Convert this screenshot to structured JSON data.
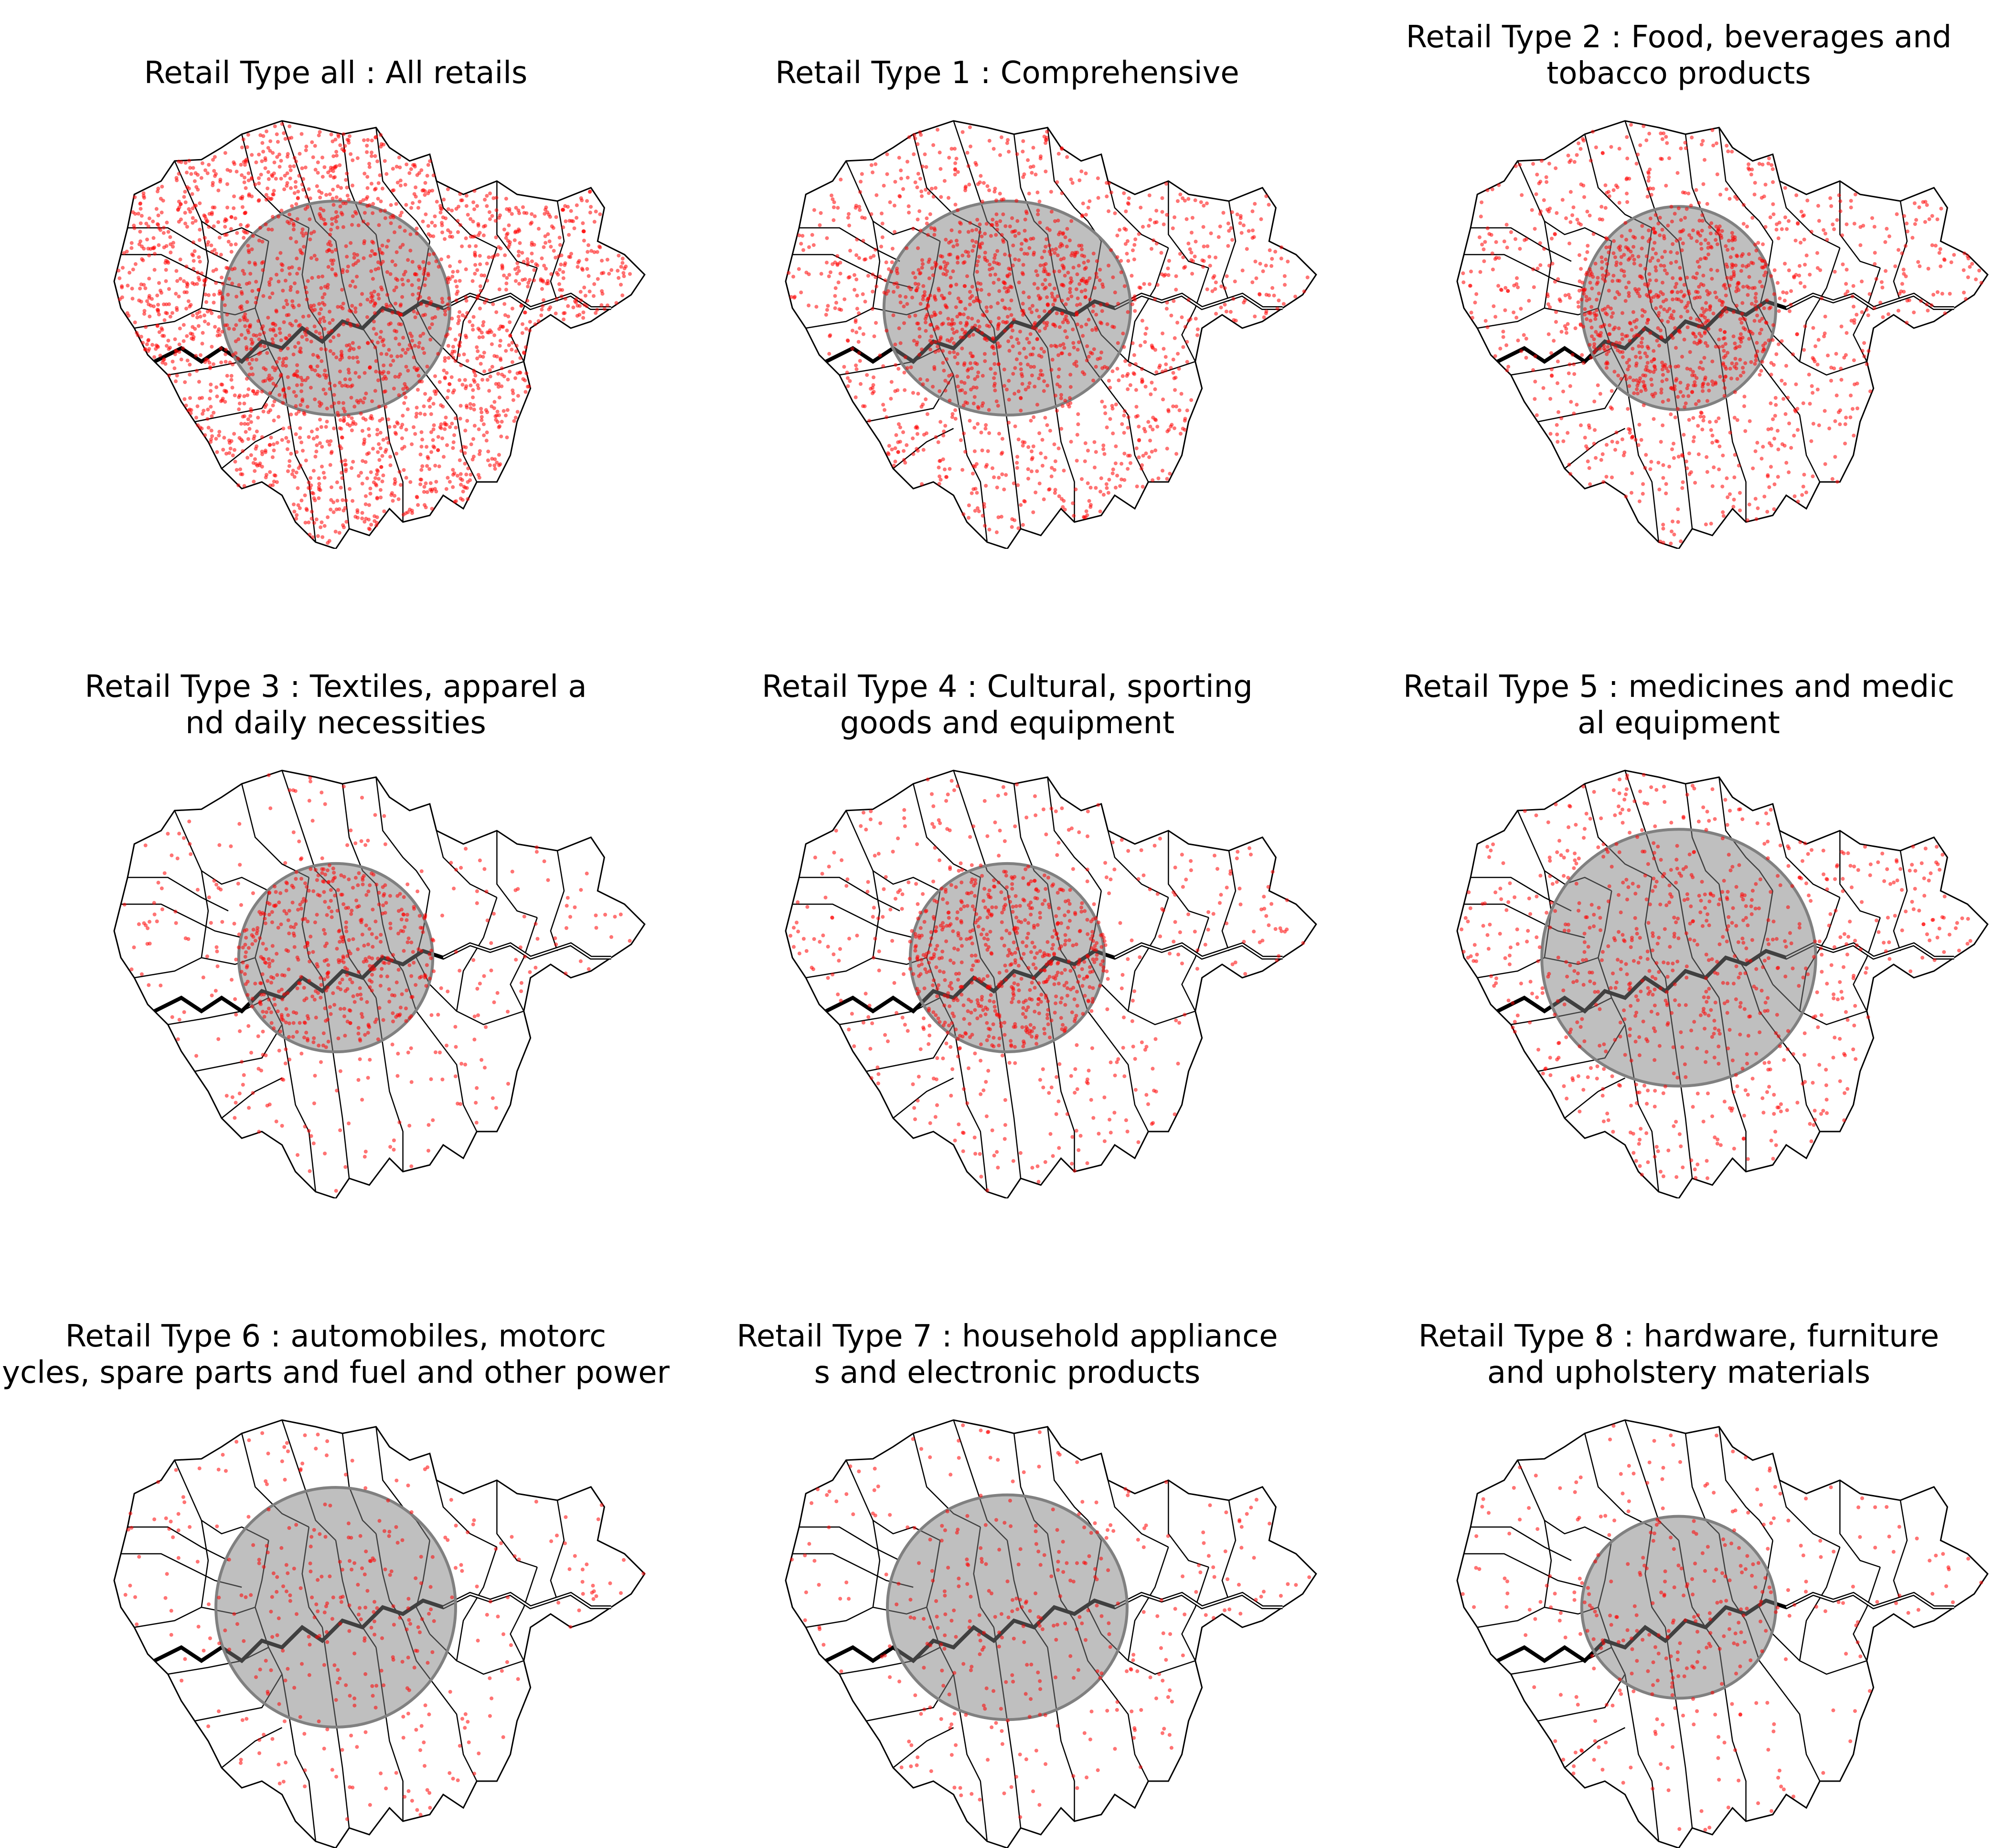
{
  "figure": {
    "panels": [
      {
        "title": [
          "Retail Type all : All retails"
        ],
        "density": 1.0,
        "focus": 0.0,
        "ellipse_rx": 1.0,
        "ellipse_ry": 1.0
      },
      {
        "title": [
          "Retail Type 1 : Comprehensive"
        ],
        "density": 0.65,
        "focus": 0.15,
        "ellipse_rx": 1.08,
        "ellipse_ry": 1.0
      },
      {
        "title": [
          "Retail Type 2 : Food, beverages and",
          "tobacco products"
        ],
        "density": 0.6,
        "focus": 0.25,
        "ellipse_rx": 0.85,
        "ellipse_ry": 0.95
      },
      {
        "title": [
          "Retail Type 3 : Textiles, apparel a",
          "nd daily necessities"
        ],
        "density": 0.3,
        "focus": 0.4,
        "ellipse_rx": 0.85,
        "ellipse_ry": 0.88
      },
      {
        "title": [
          "Retail Type 4 : Cultural, sporting",
          "goods and equipment"
        ],
        "density": 0.4,
        "focus": 0.4,
        "ellipse_rx": 0.85,
        "ellipse_ry": 0.88
      },
      {
        "title": [
          "Retail Type 5 : medicines and medic",
          "al equipment"
        ],
        "density": 0.35,
        "focus": 0.1,
        "ellipse_rx": 1.2,
        "ellipse_ry": 1.2
      },
      {
        "title": [
          "Retail Type 6 : automobiles, motorc",
          "ycles, spare parts and fuel and other power"
        ],
        "density": 0.15,
        "focus": 0.15,
        "ellipse_rx": 1.05,
        "ellipse_ry": 1.12
      },
      {
        "title": [
          "Retail Type 7 : household appliance",
          "s and electronic products"
        ],
        "density": 0.15,
        "focus": 0.15,
        "ellipse_rx": 1.05,
        "ellipse_ry": 1.05
      },
      {
        "title": [
          "Retail Type 8 : hardware, furniture",
          "and upholstery materials"
        ],
        "density": 0.15,
        "focus": 0.2,
        "ellipse_rx": 0.85,
        "ellipse_ry": 0.85
      }
    ]
  },
  "colors": {
    "points": "#ff0000",
    "hotspot_fill": "#808080",
    "boundary": "#000000",
    "river": "#000000"
  }
}
